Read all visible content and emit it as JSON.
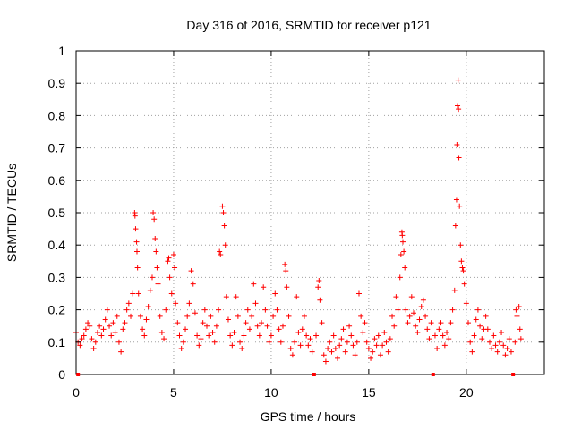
{
  "chart_data": {
    "type": "scatter",
    "title": "Day 316 of 2016, SRMTID for receiver p121",
    "xlabel": "GPS time / hours",
    "ylabel": "SRMTID / TECUs",
    "xlim": [
      0,
      24
    ],
    "ylim": [
      0,
      1
    ],
    "xticks": [
      0,
      5,
      10,
      15,
      20
    ],
    "xtick_labels": [
      "0",
      "5",
      "10",
      "15",
      "20"
    ],
    "yticks": [
      0,
      0.1,
      0.2,
      0.3,
      0.4,
      0.5,
      0.6,
      0.7,
      0.8,
      0.9,
      1
    ],
    "ytick_labels": [
      "0",
      "0.1",
      "0.2",
      "0.3",
      "0.4",
      "0.5",
      "0.6",
      "0.7",
      "0.8",
      "0.9",
      "1"
    ],
    "grid": true,
    "marker": "+",
    "color": "#ff0000",
    "zero_markers_x": [
      0.1,
      12.2,
      18.3,
      22.4
    ],
    "series": [
      {
        "name": "SRMTID",
        "points": [
          [
            0.0,
            0.13
          ],
          [
            0.1,
            0.1
          ],
          [
            0.2,
            0.09
          ],
          [
            0.3,
            0.11
          ],
          [
            0.4,
            0.12
          ],
          [
            0.5,
            0.14
          ],
          [
            0.6,
            0.16
          ],
          [
            0.7,
            0.15
          ],
          [
            0.8,
            0.11
          ],
          [
            0.9,
            0.08
          ],
          [
            1.0,
            0.1
          ],
          [
            1.1,
            0.13
          ],
          [
            1.2,
            0.15
          ],
          [
            1.3,
            0.12
          ],
          [
            1.4,
            0.14
          ],
          [
            1.5,
            0.17
          ],
          [
            1.6,
            0.2
          ],
          [
            1.7,
            0.15
          ],
          [
            1.8,
            0.12
          ],
          [
            1.9,
            0.16
          ],
          [
            2.0,
            0.13
          ],
          [
            2.1,
            0.18
          ],
          [
            2.2,
            0.1
          ],
          [
            2.3,
            0.07
          ],
          [
            2.4,
            0.14
          ],
          [
            2.5,
            0.16
          ],
          [
            2.6,
            0.2
          ],
          [
            2.7,
            0.22
          ],
          [
            2.8,
            0.18
          ],
          [
            2.9,
            0.25
          ],
          [
            3.0,
            0.5
          ],
          [
            3.02,
            0.49
          ],
          [
            3.05,
            0.45
          ],
          [
            3.1,
            0.41
          ],
          [
            3.12,
            0.38
          ],
          [
            3.15,
            0.33
          ],
          [
            3.2,
            0.25
          ],
          [
            3.3,
            0.18
          ],
          [
            3.4,
            0.14
          ],
          [
            3.5,
            0.12
          ],
          [
            3.6,
            0.17
          ],
          [
            3.7,
            0.21
          ],
          [
            3.8,
            0.26
          ],
          [
            3.9,
            0.3
          ],
          [
            3.95,
            0.5
          ],
          [
            4.0,
            0.48
          ],
          [
            4.05,
            0.42
          ],
          [
            4.1,
            0.38
          ],
          [
            4.15,
            0.33
          ],
          [
            4.2,
            0.28
          ],
          [
            4.3,
            0.18
          ],
          [
            4.4,
            0.13
          ],
          [
            4.5,
            0.11
          ],
          [
            4.6,
            0.2
          ],
          [
            4.7,
            0.35
          ],
          [
            4.75,
            0.36
          ],
          [
            4.8,
            0.3
          ],
          [
            4.9,
            0.25
          ],
          [
            5.0,
            0.37
          ],
          [
            5.05,
            0.33
          ],
          [
            5.1,
            0.22
          ],
          [
            5.2,
            0.16
          ],
          [
            5.3,
            0.12
          ],
          [
            5.4,
            0.08
          ],
          [
            5.5,
            0.1
          ],
          [
            5.6,
            0.14
          ],
          [
            5.7,
            0.18
          ],
          [
            5.8,
            0.22
          ],
          [
            5.9,
            0.32
          ],
          [
            6.0,
            0.28
          ],
          [
            6.1,
            0.19
          ],
          [
            6.2,
            0.12
          ],
          [
            6.3,
            0.09
          ],
          [
            6.4,
            0.11
          ],
          [
            6.5,
            0.16
          ],
          [
            6.6,
            0.2
          ],
          [
            6.7,
            0.15
          ],
          [
            6.8,
            0.12
          ],
          [
            6.9,
            0.18
          ],
          [
            7.0,
            0.13
          ],
          [
            7.1,
            0.1
          ],
          [
            7.2,
            0.15
          ],
          [
            7.3,
            0.2
          ],
          [
            7.35,
            0.38
          ],
          [
            7.4,
            0.37
          ],
          [
            7.5,
            0.52
          ],
          [
            7.55,
            0.5
          ],
          [
            7.6,
            0.46
          ],
          [
            7.65,
            0.4
          ],
          [
            7.7,
            0.24
          ],
          [
            7.8,
            0.17
          ],
          [
            7.9,
            0.12
          ],
          [
            8.0,
            0.09
          ],
          [
            8.1,
            0.13
          ],
          [
            8.2,
            0.24
          ],
          [
            8.3,
            0.18
          ],
          [
            8.4,
            0.1
          ],
          [
            8.5,
            0.08
          ],
          [
            8.6,
            0.12
          ],
          [
            8.7,
            0.16
          ],
          [
            8.8,
            0.2
          ],
          [
            8.9,
            0.14
          ],
          [
            9.0,
            0.18
          ],
          [
            9.1,
            0.28
          ],
          [
            9.2,
            0.22
          ],
          [
            9.3,
            0.15
          ],
          [
            9.4,
            0.12
          ],
          [
            9.5,
            0.16
          ],
          [
            9.6,
            0.27
          ],
          [
            9.7,
            0.2
          ],
          [
            9.8,
            0.15
          ],
          [
            9.9,
            0.1
          ],
          [
            10.0,
            0.12
          ],
          [
            10.1,
            0.18
          ],
          [
            10.2,
            0.25
          ],
          [
            10.3,
            0.2
          ],
          [
            10.4,
            0.14
          ],
          [
            10.5,
            0.1
          ],
          [
            10.6,
            0.15
          ],
          [
            10.7,
            0.34
          ],
          [
            10.75,
            0.32
          ],
          [
            10.8,
            0.27
          ],
          [
            10.9,
            0.18
          ],
          [
            11.0,
            0.08
          ],
          [
            11.1,
            0.06
          ],
          [
            11.2,
            0.1
          ],
          [
            11.3,
            0.24
          ],
          [
            11.4,
            0.13
          ],
          [
            11.5,
            0.09
          ],
          [
            11.6,
            0.14
          ],
          [
            11.7,
            0.18
          ],
          [
            11.8,
            0.12
          ],
          [
            11.9,
            0.09
          ],
          [
            12.0,
            0.11
          ],
          [
            12.1,
            0.07
          ],
          [
            12.3,
            0.12
          ],
          [
            12.4,
            0.27
          ],
          [
            12.45,
            0.29
          ],
          [
            12.5,
            0.23
          ],
          [
            12.6,
            0.16
          ],
          [
            12.7,
            0.06
          ],
          [
            12.8,
            0.04
          ],
          [
            12.9,
            0.08
          ],
          [
            13.0,
            0.1
          ],
          [
            13.1,
            0.07
          ],
          [
            13.2,
            0.12
          ],
          [
            13.3,
            0.08
          ],
          [
            13.4,
            0.05
          ],
          [
            13.5,
            0.09
          ],
          [
            13.6,
            0.11
          ],
          [
            13.7,
            0.14
          ],
          [
            13.8,
            0.07
          ],
          [
            13.9,
            0.1
          ],
          [
            14.0,
            0.15
          ],
          [
            14.1,
            0.12
          ],
          [
            14.2,
            0.09
          ],
          [
            14.3,
            0.06
          ],
          [
            14.4,
            0.1
          ],
          [
            14.5,
            0.25
          ],
          [
            14.6,
            0.18
          ],
          [
            14.7,
            0.13
          ],
          [
            14.8,
            0.16
          ],
          [
            14.9,
            0.1
          ],
          [
            15.0,
            0.08
          ],
          [
            15.1,
            0.05
          ],
          [
            15.2,
            0.07
          ],
          [
            15.3,
            0.11
          ],
          [
            15.4,
            0.09
          ],
          [
            15.5,
            0.12
          ],
          [
            15.6,
            0.06
          ],
          [
            15.7,
            0.09
          ],
          [
            15.8,
            0.13
          ],
          [
            15.9,
            0.1
          ],
          [
            16.0,
            0.07
          ],
          [
            16.1,
            0.11
          ],
          [
            16.2,
            0.18
          ],
          [
            16.3,
            0.15
          ],
          [
            16.4,
            0.24
          ],
          [
            16.5,
            0.2
          ],
          [
            16.6,
            0.3
          ],
          [
            16.65,
            0.37
          ],
          [
            16.7,
            0.44
          ],
          [
            16.72,
            0.43
          ],
          [
            16.75,
            0.41
          ],
          [
            16.8,
            0.38
          ],
          [
            16.85,
            0.33
          ],
          [
            16.9,
            0.2
          ],
          [
            17.0,
            0.16
          ],
          [
            17.1,
            0.18
          ],
          [
            17.2,
            0.24
          ],
          [
            17.3,
            0.19
          ],
          [
            17.4,
            0.15
          ],
          [
            17.5,
            0.13
          ],
          [
            17.6,
            0.17
          ],
          [
            17.7,
            0.21
          ],
          [
            17.8,
            0.23
          ],
          [
            17.9,
            0.18
          ],
          [
            18.0,
            0.14
          ],
          [
            18.1,
            0.11
          ],
          [
            18.2,
            0.16
          ],
          [
            18.4,
            0.12
          ],
          [
            18.5,
            0.08
          ],
          [
            18.6,
            0.14
          ],
          [
            18.7,
            0.16
          ],
          [
            18.8,
            0.12
          ],
          [
            18.9,
            0.09
          ],
          [
            19.0,
            0.13
          ],
          [
            19.1,
            0.11
          ],
          [
            19.2,
            0.16
          ],
          [
            19.3,
            0.2
          ],
          [
            19.4,
            0.26
          ],
          [
            19.45,
            0.46
          ],
          [
            19.5,
            0.54
          ],
          [
            19.52,
            0.71
          ],
          [
            19.55,
            0.83
          ],
          [
            19.58,
            0.91
          ],
          [
            19.6,
            0.82
          ],
          [
            19.62,
            0.67
          ],
          [
            19.65,
            0.52
          ],
          [
            19.7,
            0.4
          ],
          [
            19.75,
            0.35
          ],
          [
            19.8,
            0.33
          ],
          [
            19.85,
            0.32
          ],
          [
            19.9,
            0.28
          ],
          [
            20.0,
            0.22
          ],
          [
            20.1,
            0.16
          ],
          [
            20.2,
            0.1
          ],
          [
            20.3,
            0.07
          ],
          [
            20.4,
            0.12
          ],
          [
            20.5,
            0.17
          ],
          [
            20.6,
            0.2
          ],
          [
            20.7,
            0.15
          ],
          [
            20.8,
            0.11
          ],
          [
            20.9,
            0.14
          ],
          [
            21.0,
            0.18
          ],
          [
            21.1,
            0.14
          ],
          [
            21.2,
            0.1
          ],
          [
            21.3,
            0.08
          ],
          [
            21.4,
            0.12
          ],
          [
            21.5,
            0.09
          ],
          [
            21.6,
            0.07
          ],
          [
            21.7,
            0.1
          ],
          [
            21.8,
            0.13
          ],
          [
            21.9,
            0.09
          ],
          [
            22.0,
            0.06
          ],
          [
            22.1,
            0.08
          ],
          [
            22.2,
            0.11
          ],
          [
            22.3,
            0.07
          ],
          [
            22.5,
            0.1
          ],
          [
            22.55,
            0.2
          ],
          [
            22.6,
            0.18
          ],
          [
            22.7,
            0.21
          ],
          [
            22.75,
            0.14
          ],
          [
            22.8,
            0.11
          ]
        ]
      }
    ]
  }
}
